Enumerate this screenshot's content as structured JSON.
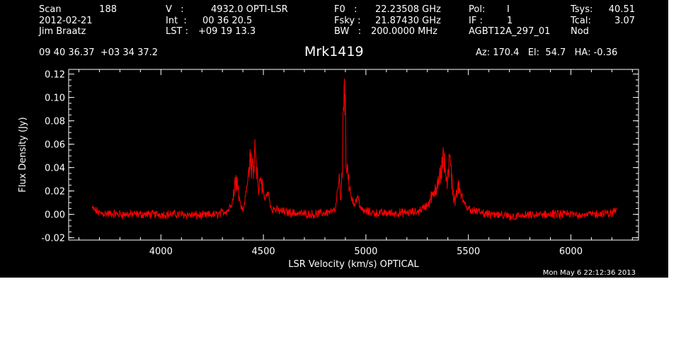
{
  "header": {
    "scan_label": "Scan",
    "scan_value": "188",
    "date": "2012-02-21",
    "observer": "Jim Braatz",
    "v_label": "V   :",
    "v_value": "4932.0 OPTI-LSR",
    "int_label": "Int  :",
    "int_value": "00 36 20.5",
    "lst_label": "LST :",
    "lst_value": "+09 19 13.3",
    "f0_label": "F0   :",
    "f0_value": "22.23508 GHz",
    "fsky_label": "Fsky :",
    "fsky_value": "21.87430 GHz",
    "bw_label": "BW   :",
    "bw_value": "200.0000 MHz",
    "pol_label": "Pol:",
    "pol_value": "I",
    "if_label": "IF :",
    "if_value": "1",
    "project": "AGBT12A_297_01",
    "tsys_label": "Tsys:",
    "tsys_value": "40.51",
    "tcal_label": "Tcal:",
    "tcal_value": "3.07",
    "mode": "Nod",
    "coords": "09 40 36.37  +03 34 37.2",
    "az_el_ha": "Az: 170.4   El:  54.7   HA: -0.36"
  },
  "timestamp": "Mon May  6 22:12:36 2013",
  "chart_data": {
    "type": "line",
    "title": "Mrk1419",
    "xlabel": "LSR Velocity (km/s) OPTICAL",
    "ylabel": "Flux Density (Jy)",
    "xlim": [
      3550,
      6330
    ],
    "ylim": [
      -0.022,
      0.124
    ],
    "xticks": [
      4000,
      4500,
      5000,
      5500,
      6000
    ],
    "yticks": [
      "-0.02",
      "0.00",
      "0.02",
      "0.04",
      "0.06",
      "0.08",
      "0.10",
      "0.12"
    ],
    "ytick_values": [
      -0.02,
      0.0,
      0.02,
      0.04,
      0.06,
      0.08,
      0.1,
      0.12
    ],
    "series": [
      {
        "color": "#ff0000",
        "x_range": [
          3665,
          6225
        ],
        "baseline_noise": 0.003,
        "points": [
          [
            3665,
            0.005
          ],
          [
            3700,
            0.001
          ],
          [
            3800,
            0.0
          ],
          [
            3900,
            0.0
          ],
          [
            4000,
            0.0
          ],
          [
            4100,
            0.0
          ],
          [
            4200,
            -0.001
          ],
          [
            4280,
            0.0
          ],
          [
            4330,
            0.004
          ],
          [
            4350,
            0.012
          ],
          [
            4370,
            0.03
          ],
          [
            4385,
            0.01
          ],
          [
            4400,
            0.003
          ],
          [
            4420,
            0.02
          ],
          [
            4435,
            0.045
          ],
          [
            4450,
            0.03
          ],
          [
            4460,
            0.048
          ],
          [
            4475,
            0.02
          ],
          [
            4490,
            0.028
          ],
          [
            4505,
            0.01
          ],
          [
            4520,
            0.018
          ],
          [
            4540,
            0.005
          ],
          [
            4580,
            0.003
          ],
          [
            4650,
            0.001
          ],
          [
            4750,
            0.0
          ],
          [
            4850,
            0.003
          ],
          [
            4870,
            0.025
          ],
          [
            4880,
            0.01
          ],
          [
            4895,
            0.1
          ],
          [
            4905,
            0.04
          ],
          [
            4920,
            0.02
          ],
          [
            4940,
            0.008
          ],
          [
            4960,
            0.015
          ],
          [
            4980,
            0.003
          ],
          [
            5050,
            0.001
          ],
          [
            5150,
            0.001
          ],
          [
            5250,
            0.002
          ],
          [
            5300,
            0.008
          ],
          [
            5330,
            0.015
          ],
          [
            5350,
            0.025
          ],
          [
            5365,
            0.03
          ],
          [
            5380,
            0.045
          ],
          [
            5395,
            0.025
          ],
          [
            5410,
            0.04
          ],
          [
            5430,
            0.01
          ],
          [
            5450,
            0.02
          ],
          [
            5470,
            0.012
          ],
          [
            5500,
            0.005
          ],
          [
            5550,
            0.002
          ],
          [
            5600,
            0.0
          ],
          [
            5700,
            -0.002
          ],
          [
            5800,
            -0.001
          ],
          [
            5900,
            0.0
          ],
          [
            6000,
            0.0
          ],
          [
            6100,
            0.0
          ],
          [
            6200,
            0.001
          ],
          [
            6225,
            0.004
          ]
        ]
      }
    ],
    "grid": false
  },
  "colors": {
    "background": "#000000",
    "foreground": "#ffffff",
    "trace": "#ff0000"
  }
}
